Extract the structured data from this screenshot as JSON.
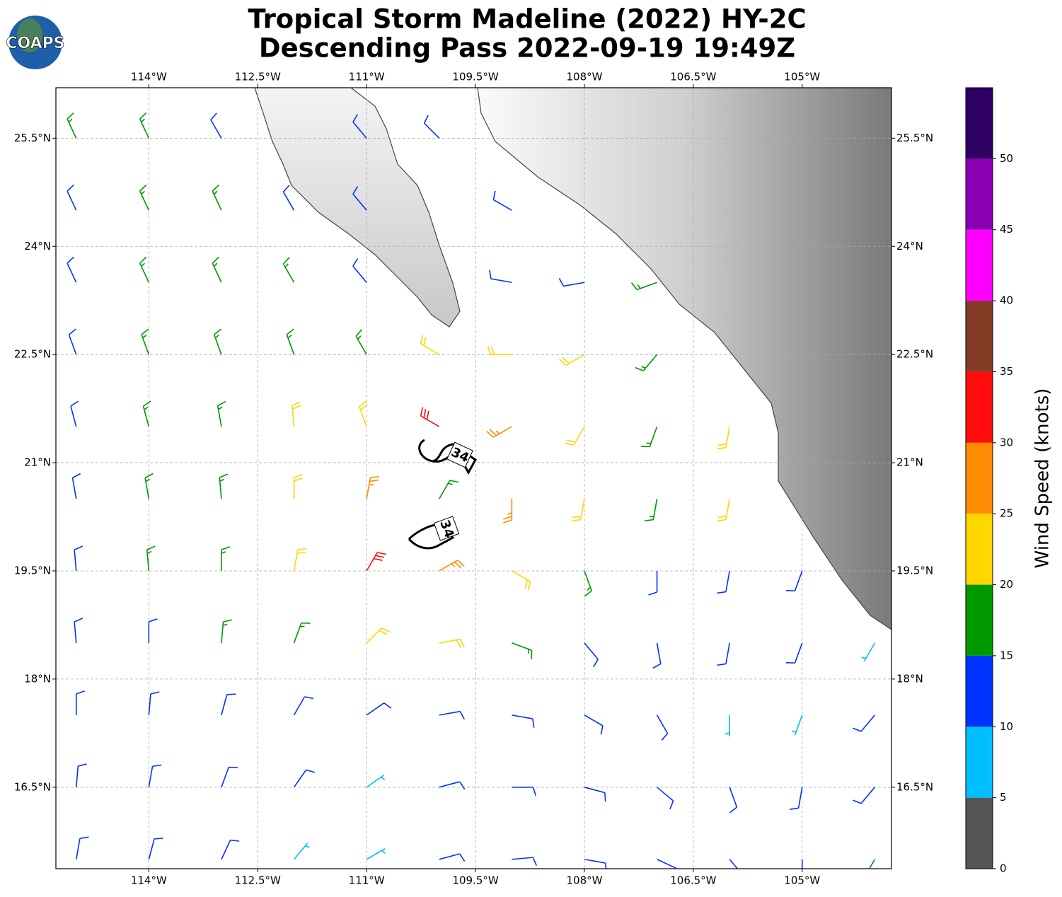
{
  "logo": "COAPS",
  "title": [
    "Tropical Storm Madeline (2022) HY-2C",
    "Descending Pass 2022-09-19 19:49Z"
  ],
  "map": {
    "xlim": [
      -115.28,
      -103.77
    ],
    "ylim": [
      15.37,
      26.2
    ],
    "grid": true,
    "xticks": [
      {
        "value": -114,
        "label": "114°W"
      },
      {
        "value": -112.5,
        "label": "112.5°W"
      },
      {
        "value": -111,
        "label": "111°W"
      },
      {
        "value": -109.5,
        "label": "109.5°W"
      },
      {
        "value": -108,
        "label": "108°W"
      },
      {
        "value": -106.5,
        "label": "106.5°W"
      },
      {
        "value": -105,
        "label": "105°W"
      }
    ],
    "yticks": [
      {
        "value": 16.5,
        "label": "16.5°N"
      },
      {
        "value": 18,
        "label": "18°N"
      },
      {
        "value": 19.5,
        "label": "19.5°N"
      },
      {
        "value": 21,
        "label": "21°N"
      },
      {
        "value": 22.5,
        "label": "22.5°N"
      },
      {
        "value": 24,
        "label": "24°N"
      },
      {
        "value": 25.5,
        "label": "25.5°N"
      }
    ]
  },
  "contour": {
    "level": 34
  },
  "wind": {
    "lon": [
      -115,
      -114,
      -113,
      -112,
      -111,
      -110,
      -109,
      -108,
      -107,
      -106,
      -105,
      -104
    ],
    "lat": [
      25.5,
      24.5,
      23.5,
      22.5,
      21.5,
      20.5,
      19.5,
      18.5,
      17.5,
      16.5,
      15.5
    ],
    "speed": [
      [
        17,
        17,
        13,
        null,
        12,
        12,
        null,
        null,
        null,
        null,
        null,
        null
      ],
      [
        14,
        17,
        17,
        13,
        12,
        null,
        13,
        null,
        null,
        null,
        null,
        null
      ],
      [
        13,
        17,
        17,
        16,
        13,
        null,
        14,
        14,
        16,
        null,
        null,
        null
      ],
      [
        12,
        17,
        17,
        16,
        18,
        23,
        20,
        22,
        18,
        null,
        null,
        null
      ],
      [
        13,
        16,
        17,
        22,
        24,
        31,
        27,
        22,
        18,
        22,
        null,
        null
      ],
      [
        14,
        16,
        18,
        23,
        28,
        17,
        27,
        21,
        17,
        22,
        null,
        null
      ],
      [
        13,
        16,
        17,
        21,
        31,
        28,
        23,
        18,
        14,
        13,
        13,
        null
      ],
      [
        12,
        14,
        16,
        18,
        22,
        21,
        17,
        14,
        13,
        12,
        11,
        9
      ],
      [
        12,
        13,
        14,
        14,
        14,
        14,
        13,
        12,
        12,
        9,
        9,
        11
      ],
      [
        11,
        12,
        12,
        11,
        9,
        11,
        12,
        12,
        12,
        12,
        13,
        13
      ],
      [
        12,
        12,
        11,
        8,
        8,
        11,
        12,
        12,
        13,
        13,
        14,
        17
      ]
    ],
    "direction": [
      [
        335,
        335,
        330,
        null,
        320,
        315,
        null,
        null,
        null,
        null,
        null,
        null
      ],
      [
        335,
        335,
        335,
        330,
        320,
        null,
        300,
        null,
        null,
        null,
        null,
        null
      ],
      [
        335,
        335,
        335,
        330,
        320,
        null,
        280,
        260,
        250,
        null,
        null,
        null
      ],
      [
        340,
        340,
        340,
        340,
        330,
        300,
        270,
        240,
        220,
        null,
        null,
        null
      ],
      [
        345,
        345,
        350,
        355,
        340,
        300,
        240,
        210,
        200,
        190,
        null,
        null
      ],
      [
        350,
        350,
        355,
        0,
        10,
        30,
        180,
        190,
        190,
        190,
        null,
        null
      ],
      [
        355,
        355,
        0,
        10,
        30,
        60,
        120,
        160,
        180,
        190,
        200,
        null
      ],
      [
        355,
        0,
        5,
        20,
        45,
        80,
        110,
        140,
        170,
        190,
        200,
        210
      ],
      [
        0,
        5,
        15,
        30,
        55,
        80,
        100,
        120,
        150,
        180,
        200,
        220
      ],
      [
        5,
        10,
        20,
        35,
        55,
        75,
        90,
        105,
        130,
        160,
        190,
        220
      ],
      [
        10,
        15,
        25,
        40,
        60,
        75,
        85,
        100,
        115,
        140,
        180,
        210
      ]
    ]
  },
  "colorbar": {
    "label": "Wind Speed (knots)",
    "bounds": [
      0,
      5,
      10,
      15,
      20,
      25,
      30,
      35,
      40,
      45,
      50,
      55
    ],
    "colors": [
      "#555555",
      "#00bfff",
      "#0033ff",
      "#009900",
      "#ffd700",
      "#ff8c00",
      "#ff0d0d",
      "#843c26",
      "#ff00ff",
      "#8b00b5",
      "#2e0061"
    ],
    "ticks": [
      0,
      5,
      10,
      15,
      20,
      25,
      30,
      35,
      40,
      45,
      50
    ]
  }
}
